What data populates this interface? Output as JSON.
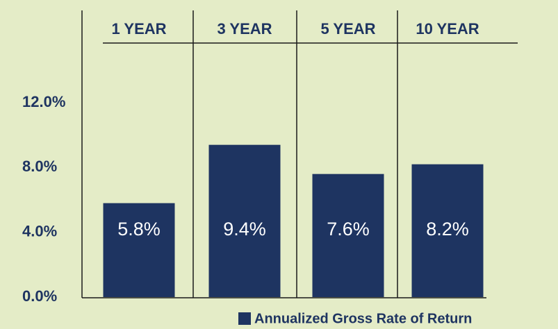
{
  "chart_data": {
    "type": "bar",
    "categories": [
      "1 YEAR",
      "3 YEAR",
      "5 YEAR",
      "10 YEAR"
    ],
    "series": [
      {
        "name": "Annualized Gross Rate of Return",
        "color": "#1e3461",
        "values": [
          5.8,
          9.4,
          7.6,
          8.2
        ],
        "value_labels": [
          "5.8%",
          "9.4%",
          "7.6%",
          "8.2%"
        ]
      }
    ],
    "ylim": [
      0,
      12
    ],
    "yticks": [
      {
        "value": 0,
        "label": "0.0%"
      },
      {
        "value": 4,
        "label": "4.0%"
      },
      {
        "value": 8,
        "label": "8.0%"
      },
      {
        "value": 12,
        "label": "12.0%"
      }
    ],
    "grid": false,
    "legend": "bottom-right"
  }
}
